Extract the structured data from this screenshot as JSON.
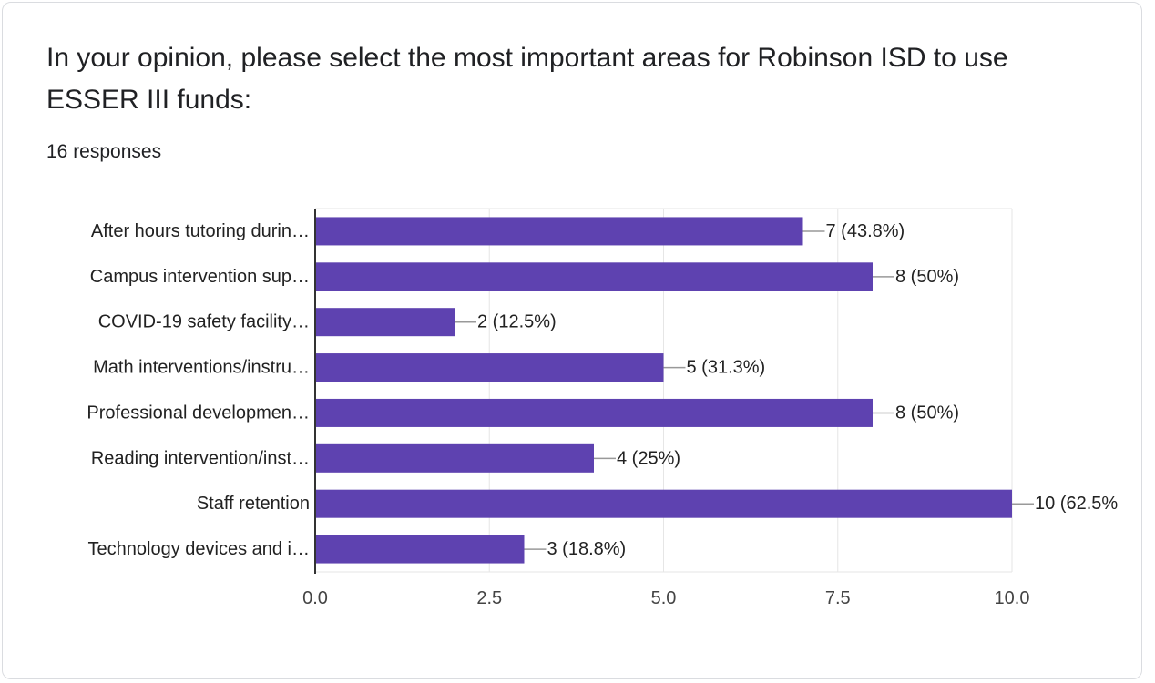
{
  "question": {
    "title": "In your opinion, please select the most important areas for Robinson ISD to use ESSER III funds:",
    "responses": "16 responses"
  },
  "chart_data": {
    "type": "bar",
    "orientation": "horizontal",
    "categories": [
      "After hours tutoring durin…",
      "Campus intervention sup…",
      "COVID-19 safety facility…",
      "Math interventions/instru…",
      "Professional developmen…",
      "Reading intervention/inst…",
      "Staff retention",
      "Technology devices and i…"
    ],
    "values": [
      7,
      8,
      2,
      5,
      8,
      4,
      10,
      3
    ],
    "value_labels": [
      "7 (43.8%)",
      "8 (50%)",
      "2 (12.5%)",
      "5 (31.3%)",
      "8 (50%)",
      "4 (25%)",
      "10 (62.5%",
      "3 (18.8%)"
    ],
    "xlim": [
      0,
      10
    ],
    "x_ticks": [
      "0.0",
      "2.5",
      "5.0",
      "7.5",
      "10.0"
    ],
    "x_tick_values": [
      0,
      2.5,
      5,
      7.5,
      10
    ],
    "grid": true,
    "bar_color": "#5e42b0",
    "grid_color": "#e6e6e6",
    "axis_color": "#333333",
    "leader_color": "#999999"
  }
}
